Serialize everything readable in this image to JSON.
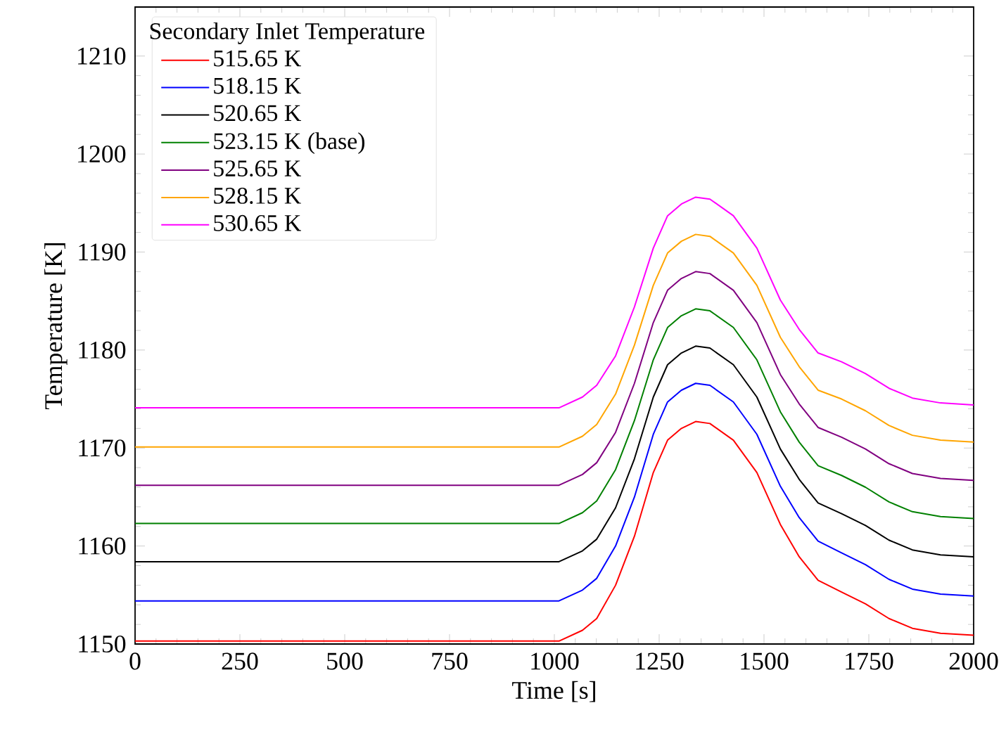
{
  "chart_data": {
    "type": "line",
    "xlabel": "Time [s]",
    "ylabel": "Temperature [K]",
    "legend_title": "Secondary Inlet Temperature",
    "x": [
      0,
      1011,
      1067,
      1101,
      1146,
      1191,
      1236,
      1270,
      1303,
      1337,
      1371,
      1427,
      1483,
      1539,
      1584,
      1629,
      1685,
      1742,
      1798,
      1854,
      1921,
      2000
    ],
    "series": [
      {
        "name": "515.65 K",
        "color": "#ff0000",
        "values": [
          1150.3,
          1150.3,
          1151.4,
          1152.6,
          1156.0,
          1161.0,
          1167.5,
          1170.8,
          1172.0,
          1172.7,
          1172.5,
          1170.8,
          1167.5,
          1162.2,
          1158.9,
          1156.5,
          1155.3,
          1154.1,
          1152.6,
          1151.6,
          1151.1,
          1150.9
        ]
      },
      {
        "name": "518.15 K",
        "color": "#0000ff",
        "values": [
          1154.4,
          1154.4,
          1155.5,
          1156.7,
          1160.0,
          1165.0,
          1171.4,
          1174.7,
          1175.9,
          1176.6,
          1176.4,
          1174.7,
          1171.4,
          1166.1,
          1162.9,
          1160.5,
          1159.3,
          1158.1,
          1156.6,
          1155.6,
          1155.1,
          1154.9
        ]
      },
      {
        "name": "520.65 K",
        "color": "#000000",
        "values": [
          1158.4,
          1158.4,
          1159.5,
          1160.7,
          1163.9,
          1168.9,
          1175.2,
          1178.5,
          1179.7,
          1180.4,
          1180.2,
          1178.5,
          1175.2,
          1169.9,
          1166.8,
          1164.4,
          1163.3,
          1162.1,
          1160.6,
          1159.6,
          1159.1,
          1158.9
        ]
      },
      {
        "name": "523.15 K (base)",
        "color": "#008000",
        "values": [
          1162.3,
          1162.3,
          1163.4,
          1164.6,
          1167.8,
          1172.8,
          1179.0,
          1182.3,
          1183.5,
          1184.2,
          1184.0,
          1182.3,
          1179.0,
          1173.7,
          1170.6,
          1168.2,
          1167.2,
          1166.0,
          1164.5,
          1163.5,
          1163.0,
          1162.8
        ]
      },
      {
        "name": "525.65 K",
        "color": "#800080",
        "values": [
          1166.2,
          1166.2,
          1167.3,
          1168.5,
          1171.6,
          1176.6,
          1182.8,
          1186.1,
          1187.3,
          1188.0,
          1187.8,
          1186.1,
          1182.8,
          1177.5,
          1174.5,
          1172.1,
          1171.1,
          1169.9,
          1168.4,
          1167.4,
          1166.9,
          1166.7
        ]
      },
      {
        "name": "528.15 K",
        "color": "#ffa500",
        "values": [
          1170.1,
          1170.1,
          1171.2,
          1172.4,
          1175.5,
          1180.5,
          1186.6,
          1189.9,
          1191.1,
          1191.8,
          1191.6,
          1189.9,
          1186.6,
          1181.3,
          1178.3,
          1175.9,
          1175.0,
          1173.8,
          1172.3,
          1171.3,
          1170.8,
          1170.6
        ]
      },
      {
        "name": "530.65 K",
        "color": "#ff00ff",
        "values": [
          1174.1,
          1174.1,
          1175.2,
          1176.4,
          1179.4,
          1184.4,
          1190.4,
          1193.7,
          1194.9,
          1195.6,
          1195.4,
          1193.7,
          1190.4,
          1185.1,
          1182.1,
          1179.7,
          1178.8,
          1177.6,
          1176.1,
          1175.1,
          1174.6,
          1174.4
        ]
      }
    ],
    "xlim": [
      0,
      2000
    ],
    "ylim": [
      1150,
      1215
    ],
    "xticks": [
      0,
      250,
      500,
      750,
      1000,
      1250,
      1500,
      1750,
      2000
    ],
    "yticks": [
      1150,
      1160,
      1170,
      1180,
      1190,
      1200,
      1210
    ],
    "legend": "top left"
  }
}
